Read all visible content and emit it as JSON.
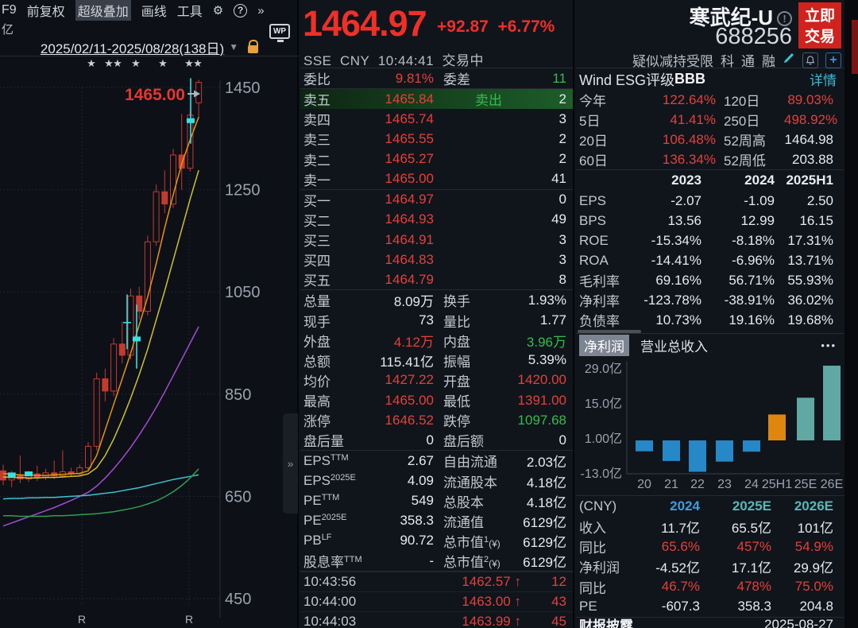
{
  "toolbar": {
    "items": [
      "F9",
      "前复权",
      "超级叠加",
      "画线",
      "工具"
    ],
    "active_item": "超级叠加",
    "gear_icon": "⚙",
    "help_icon": "?",
    "more_icon": "»",
    "unit_label": "亿",
    "wp_label": "WP"
  },
  "chart": {
    "date_range": "2025/02/11-2025/08/28(138日)",
    "dropdown_icon": "▼",
    "price_annotation": "1465.00",
    "y_ticks": [
      1450,
      1250,
      1050,
      850,
      650,
      450
    ],
    "v_gridlines_x": [
      103,
      238
    ],
    "r_marks": [
      {
        "label": "R",
        "x": 103
      },
      {
        "label": "R",
        "x": 238
      }
    ],
    "stars_x": [
      115,
      137,
      148,
      171,
      205,
      238,
      249
    ],
    "star_glyph": "★",
    "colors": {
      "candle": "#c23b31",
      "grid": "#272c34",
      "label": "#9aa2ad",
      "marker": "#35e0e0",
      "annotation": "#e8362f"
    },
    "candles": [
      [
        700,
        682,
        712,
        672
      ],
      [
        682,
        692,
        700,
        668
      ],
      [
        692,
        684,
        730,
        676
      ],
      [
        684,
        694,
        700,
        678
      ],
      [
        694,
        688,
        710,
        680
      ],
      [
        688,
        696,
        704,
        682
      ],
      [
        696,
        690,
        720,
        684
      ],
      [
        690,
        698,
        740,
        686
      ],
      [
        698,
        694,
        706,
        688
      ],
      [
        694,
        706,
        712,
        690
      ],
      [
        706,
        748,
        756,
        700
      ],
      [
        748,
        880,
        892,
        740
      ],
      [
        880,
        856,
        900,
        836
      ],
      [
        856,
        948,
        960,
        846
      ],
      [
        948,
        926,
        992,
        910
      ],
      [
        926,
        1042,
        1056,
        918
      ],
      [
        1042,
        1012,
        1060,
        996
      ],
      [
        1012,
        1148,
        1160,
        1004
      ],
      [
        1148,
        1246,
        1260,
        1140
      ],
      [
        1246,
        1222,
        1288,
        1204
      ],
      [
        1222,
        1318,
        1330,
        1214
      ],
      [
        1318,
        1292,
        1398,
        1250
      ],
      [
        1292,
        1396,
        1404,
        1286
      ],
      [
        1420,
        1460,
        1465,
        1391
      ]
    ],
    "ma_lines": [
      {
        "name": "ma-fast",
        "color": "#e8940a",
        "values": [
          695,
          693,
          692,
          691,
          691,
          691,
          692,
          693,
          694,
          695,
          700,
          730,
          780,
          830,
          880,
          930,
          985,
          1040,
          1105,
          1175,
          1240,
          1300,
          1348,
          1392
        ]
      },
      {
        "name": "ma-mid",
        "color": "#cfc12c",
        "values": [
          688,
          687,
          687,
          686,
          686,
          687,
          687,
          688,
          689,
          690,
          694,
          706,
          730,
          762,
          800,
          842,
          888,
          938,
          995,
          1052,
          1112,
          1172,
          1232,
          1288
        ]
      },
      {
        "name": "ma-slow",
        "color": "#a44bd3",
        "values": [
          592,
          598,
          604,
          610,
          616,
          622,
          628,
          635,
          642,
          650,
          658,
          670,
          686,
          704,
          724,
          746,
          770,
          796,
          824,
          854,
          886,
          918,
          950,
          982
        ]
      },
      {
        "name": "ma-60",
        "color": "#3fc1d1",
        "values": [
          645,
          646,
          646,
          647,
          647,
          648,
          648,
          649,
          650,
          651,
          652,
          654,
          656,
          658,
          661,
          664,
          667,
          671,
          675,
          679,
          683,
          686,
          689,
          692
        ]
      },
      {
        "name": "ma-120",
        "color": "#2e9e52",
        "values": [
          612,
          612,
          611,
          611,
          611,
          611,
          612,
          612,
          613,
          614,
          615,
          616,
          618,
          620,
          623,
          626,
          630,
          635,
          641,
          649,
          659,
          671,
          686,
          704
        ]
      }
    ],
    "markers": [
      {
        "shape": "sq",
        "x": 14.7,
        "p": 692
      },
      {
        "shape": "sq",
        "x": 36.1,
        "p": 694
      },
      {
        "shape": "cross",
        "x": 160,
        "p": 990,
        "top": 1045,
        "bot": 938
      },
      {
        "shape": "sq",
        "x": 172,
        "p": 958,
        "top": 1025,
        "bot": 900
      },
      {
        "shape": "sq",
        "x": 240,
        "p": 1385,
        "top": 1468,
        "bot": 1340
      }
    ]
  },
  "quote": {
    "price": "1464.97",
    "change": "+92.87",
    "change_pct": "+6.77%",
    "exchange": "SSE",
    "currency": "CNY",
    "time": "10:44:41",
    "status": "交易中"
  },
  "order_book": {
    "ratio_label": "委比",
    "ratio": "9.81%",
    "diff_label": "委差",
    "diff": "11",
    "sell_flag": "卖出",
    "asks": [
      {
        "label": "卖五",
        "price": "1465.84",
        "qty": "2",
        "highlight": true
      },
      {
        "label": "卖四",
        "price": "1465.74",
        "qty": "3"
      },
      {
        "label": "卖三",
        "price": "1465.55",
        "qty": "2"
      },
      {
        "label": "卖二",
        "price": "1465.27",
        "qty": "2"
      },
      {
        "label": "卖一",
        "price": "1465.00",
        "qty": "41"
      }
    ],
    "bids": [
      {
        "label": "买一",
        "price": "1464.97",
        "qty": "0"
      },
      {
        "label": "买二",
        "price": "1464.93",
        "qty": "49"
      },
      {
        "label": "买三",
        "price": "1464.91",
        "qty": "3"
      },
      {
        "label": "买四",
        "price": "1464.83",
        "qty": "3"
      },
      {
        "label": "买五",
        "price": "1464.79",
        "qty": "8"
      }
    ]
  },
  "stats": [
    {
      "l1": "总量",
      "v1": "8.09万",
      "c1": "w",
      "l2": "换手",
      "v2": "1.93%",
      "c2": "w"
    },
    {
      "l1": "现手",
      "v1": "73",
      "c1": "w",
      "l2": "量比",
      "v2": "1.77",
      "c2": "w"
    },
    {
      "l1": "外盘",
      "v1": "4.12万",
      "c1": "r",
      "l2": "内盘",
      "v2": "3.96万",
      "c2": "g"
    },
    {
      "l1": "总额",
      "v1": "115.41亿",
      "c1": "w",
      "l2": "振幅",
      "v2": "5.39%",
      "c2": "w"
    },
    {
      "l1": "均价",
      "v1": "1427.22",
      "c1": "r",
      "l2": "开盘",
      "v2": "1420.00",
      "c2": "r"
    },
    {
      "l1": "最高",
      "v1": "1465.00",
      "c1": "r",
      "l2": "最低",
      "v2": "1391.00",
      "c2": "r"
    },
    {
      "l1": "涨停",
      "v1": "1646.52",
      "c1": "r",
      "l2": "跌停",
      "v2": "1097.68",
      "c2": "g"
    },
    {
      "l1": "盘后量",
      "v1": "0",
      "c1": "w",
      "l2": "盘后额",
      "v2": "0",
      "c2": "w"
    }
  ],
  "valuation": [
    {
      "l1": "EPS",
      "s1": "TTM",
      "v1": "2.67",
      "l2": "自由流通",
      "v2": "2.03亿"
    },
    {
      "l1": "EPS",
      "s1": "2025E",
      "v1": "4.09",
      "l2": "流通股本",
      "v2": "4.18亿"
    },
    {
      "l1": "PE",
      "s1": "TTM",
      "v1": "549",
      "l2": "总股本",
      "v2": "4.18亿"
    },
    {
      "l1": "PE",
      "s1": "2025E",
      "v1": "358.3",
      "l2": "流通值",
      "v2": "6129亿"
    },
    {
      "l1": "PB",
      "s1": "LF",
      "v1": "90.72",
      "l2": "总市值",
      "s2": "1",
      "cur2": "(¥)",
      "v2": "6129亿"
    },
    {
      "l1": "股息率",
      "s1": "TTM",
      "v1": "-",
      "l2": "总市值",
      "s2": "2",
      "cur2": "(¥)",
      "v2": "6129亿"
    }
  ],
  "ticks": [
    {
      "time": "10:43:56",
      "price": "1462.57",
      "arrow": "↑",
      "qty": "12"
    },
    {
      "time": "10:44:00",
      "price": "1463.00",
      "arrow": "↑",
      "qty": "43"
    },
    {
      "time": "10:44:03",
      "price": "1463.99",
      "arrow": "↑",
      "qty": "45"
    }
  ],
  "stock": {
    "name": "寒武纪-U",
    "code": "688256",
    "trade_button_line1": "立即",
    "trade_button_line2": "交易",
    "warning_tag": "疑似减持受限",
    "flags": [
      "科",
      "通",
      "融"
    ],
    "info_icon": "!",
    "plus_icon": "+"
  },
  "esg": {
    "title": "Wind ESG评级",
    "rating": "BBB",
    "detail_link": "详情",
    "rows": [
      {
        "l1": "今年",
        "v1": "122.64%",
        "c1": "r",
        "l2": "120日",
        "v2": "89.03%",
        "c2": "r"
      },
      {
        "l1": "5日",
        "v1": "41.41%",
        "c1": "r",
        "l2": "250日",
        "v2": "498.92%",
        "c2": "r"
      },
      {
        "l1": "20日",
        "v1": "106.48%",
        "c1": "r",
        "l2": "52周高",
        "v2": "1464.98",
        "c2": "w"
      },
      {
        "l1": "60日",
        "v1": "136.34%",
        "c1": "r",
        "l2": "52周低",
        "v2": "203.88",
        "c2": "w"
      }
    ]
  },
  "financials": {
    "headers": [
      "2023",
      "2024",
      "2025H1"
    ],
    "rows": [
      {
        "l": "EPS",
        "vals": [
          "-2.07",
          "-1.09",
          "2.50"
        ]
      },
      {
        "l": "BPS",
        "vals": [
          "13.56",
          "12.99",
          "16.15"
        ]
      },
      {
        "l": "ROE",
        "vals": [
          "-15.34%",
          "-8.18%",
          "17.31%"
        ]
      },
      {
        "l": "ROA",
        "vals": [
          "-14.41%",
          "-6.96%",
          "13.71%"
        ]
      },
      {
        "l": "毛利率",
        "vals": [
          "69.16%",
          "56.71%",
          "55.93%"
        ]
      },
      {
        "l": "净利率",
        "vals": [
          "-123.78%",
          "-38.91%",
          "36.02%"
        ]
      },
      {
        "l": "负债率",
        "vals": [
          "10.73%",
          "19.16%",
          "19.68%"
        ]
      }
    ]
  },
  "chart_data": {
    "type": "bar",
    "tabs": [
      "净利润",
      "营业总收入"
    ],
    "active_tab": "净利润",
    "menu_icon": "•••",
    "categories": [
      "20",
      "21",
      "22",
      "23",
      "24",
      "25H1",
      "25E",
      "26E"
    ],
    "values": [
      -4.35,
      -8.25,
      -12.57,
      -8.48,
      -4.52,
      10.38,
      17.1,
      29.9
    ],
    "unit": "亿",
    "y_tick_labels": [
      "29.0亿",
      "15.0亿",
      "1.00亿",
      "-13.0亿"
    ],
    "y_tick_values": [
      29,
      15,
      1,
      -13
    ],
    "bar_colors": [
      "#2788c7",
      "#2788c7",
      "#2788c7",
      "#2788c7",
      "#2788c7",
      "#df860f",
      "#5fa8a4",
      "#5fa8a4"
    ],
    "axis_color": "#3a3f46",
    "label_color": "#9aa2ad"
  },
  "forecast": {
    "unit_label": "(CNY)",
    "headers": [
      {
        "t": "2024",
        "c": "#3e9ddd"
      },
      {
        "t": "2025E",
        "c": "#56b8b8"
      },
      {
        "t": "2026E",
        "c": "#56b8b8"
      }
    ],
    "rows": [
      {
        "l": "收入",
        "vals": [
          "11.7亿",
          "65.5亿",
          "101亿"
        ],
        "c": "w"
      },
      {
        "l": "同比",
        "vals": [
          "65.6%",
          "457%",
          "54.9%"
        ],
        "c": "r"
      },
      {
        "l": "净利润",
        "vals": [
          "-4.52亿",
          "17.1亿",
          "29.9亿"
        ],
        "c": "w"
      },
      {
        "l": "同比",
        "vals": [
          "46.7%",
          "478%",
          "75.0%"
        ],
        "c": "r"
      },
      {
        "l": "PE",
        "vals": [
          "-607.3",
          "358.3",
          "204.8"
        ],
        "c": "w"
      }
    ]
  },
  "footer": {
    "label": "财报披露",
    "date": "2025-08-27"
  }
}
